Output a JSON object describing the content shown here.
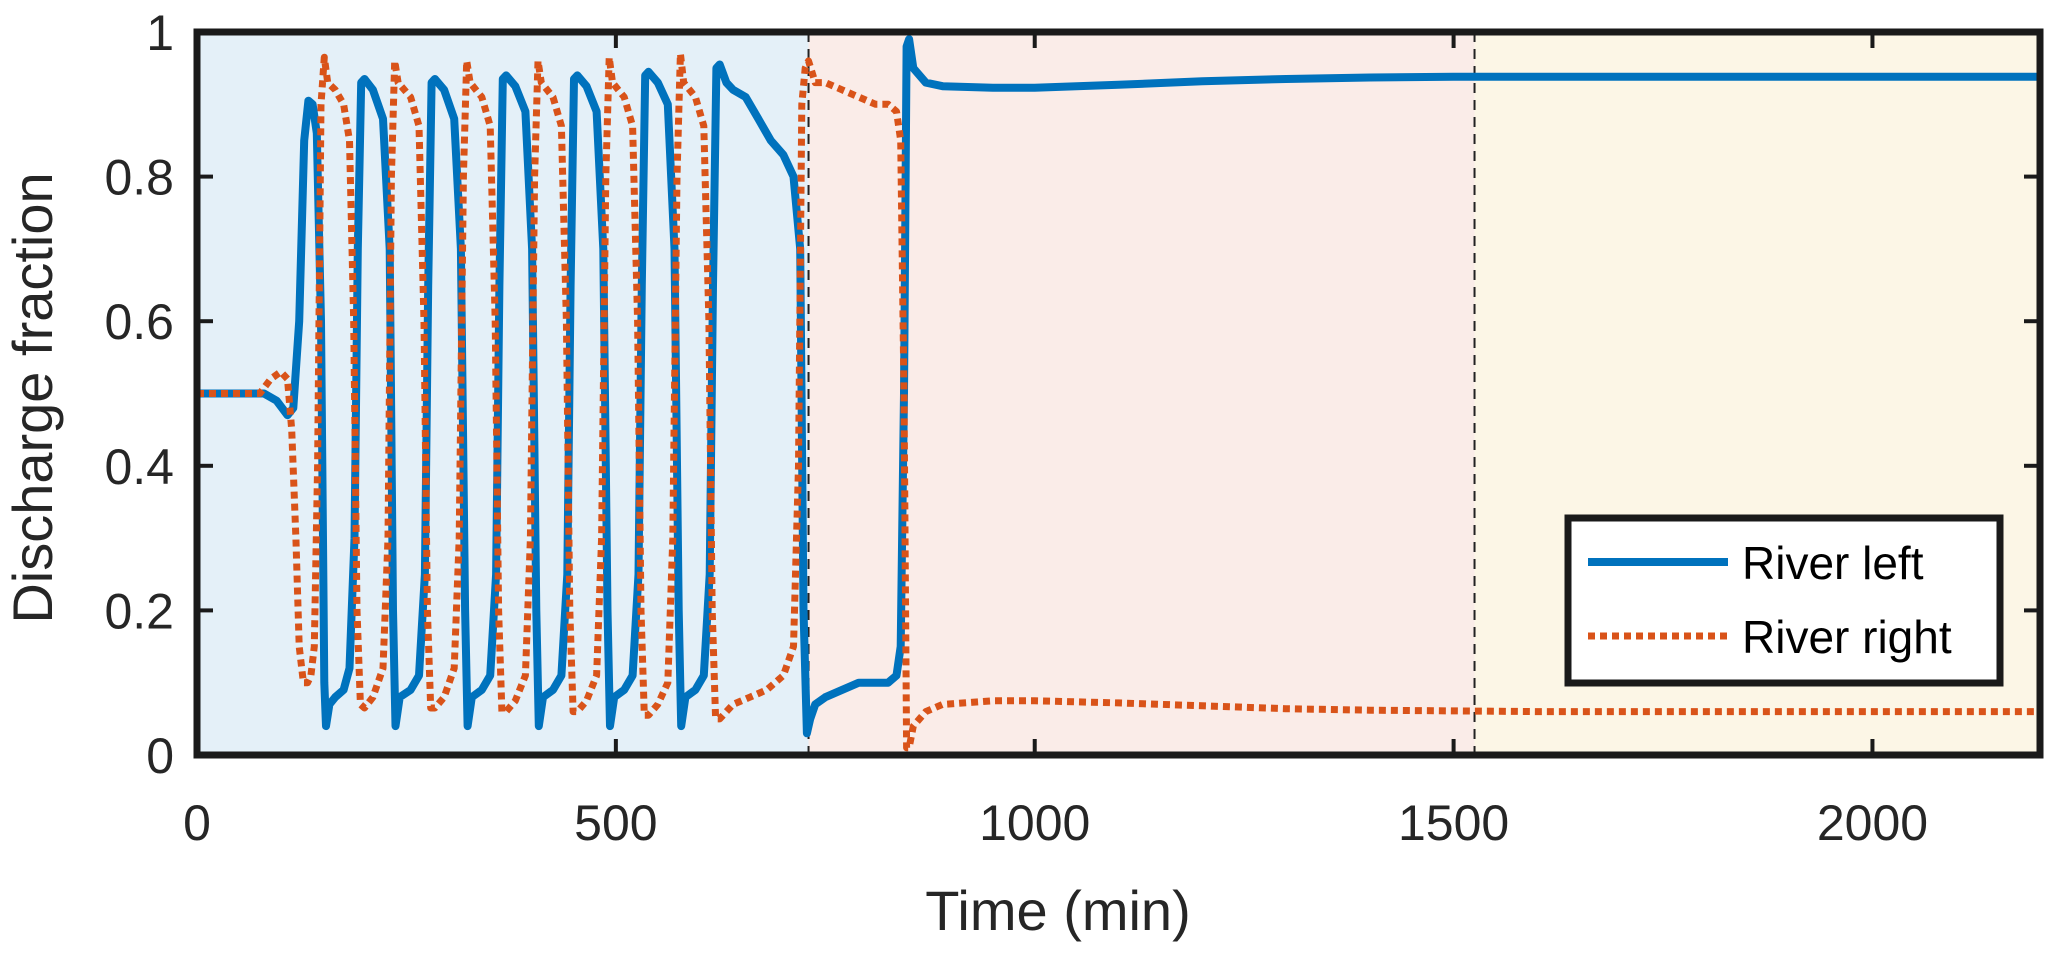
{
  "chart_data": {
    "type": "line",
    "title": "",
    "xlabel": "Time (min)",
    "ylabel": "Discharge fraction",
    "xlim": [
      0,
      2200
    ],
    "ylim": [
      0,
      1
    ],
    "x_ticks": [
      0,
      500,
      1000,
      1500,
      2000
    ],
    "y_ticks": [
      0,
      0.2,
      0.4,
      0.6,
      0.8,
      1
    ],
    "x_tick_labels": [
      "0",
      "500",
      "1000",
      "1500",
      "2000"
    ],
    "y_tick_labels": [
      "0",
      "0.2",
      "0.4",
      "0.6",
      "0.8",
      "1"
    ],
    "grid": false,
    "legend_position": "bottom-right",
    "phase_regions": [
      {
        "x0": 0,
        "x1": 730,
        "color": "#e4f0f8"
      },
      {
        "x0": 730,
        "x1": 1525,
        "color": "#faece8"
      },
      {
        "x0": 1525,
        "x1": 2200,
        "color": "#fcf6e6"
      }
    ],
    "vertical_lines": [
      730,
      1525
    ],
    "series": [
      {
        "name": "River left",
        "color": "#0072bd",
        "style": "solid",
        "points": [
          [
            0,
            0.5
          ],
          [
            80,
            0.5
          ],
          [
            95,
            0.49
          ],
          [
            108,
            0.47
          ],
          [
            115,
            0.48
          ],
          [
            122,
            0.6
          ],
          [
            128,
            0.85
          ],
          [
            133,
            0.905
          ],
          [
            138,
            0.9
          ],
          [
            143,
            0.86
          ],
          [
            148,
            0.6
          ],
          [
            152,
            0.1
          ],
          [
            154,
            0.04
          ],
          [
            158,
            0.07
          ],
          [
            165,
            0.08
          ],
          [
            175,
            0.09
          ],
          [
            182,
            0.12
          ],
          [
            188,
            0.3
          ],
          [
            192,
            0.7
          ],
          [
            196,
            0.93
          ],
          [
            200,
            0.935
          ],
          [
            210,
            0.92
          ],
          [
            222,
            0.88
          ],
          [
            230,
            0.7
          ],
          [
            234,
            0.2
          ],
          [
            237,
            0.04
          ],
          [
            242,
            0.08
          ],
          [
            255,
            0.09
          ],
          [
            265,
            0.11
          ],
          [
            272,
            0.25
          ],
          [
            276,
            0.65
          ],
          [
            280,
            0.93
          ],
          [
            284,
            0.935
          ],
          [
            295,
            0.92
          ],
          [
            307,
            0.88
          ],
          [
            315,
            0.7
          ],
          [
            320,
            0.2
          ],
          [
            323,
            0.04
          ],
          [
            328,
            0.08
          ],
          [
            340,
            0.09
          ],
          [
            350,
            0.11
          ],
          [
            357,
            0.25
          ],
          [
            361,
            0.65
          ],
          [
            365,
            0.935
          ],
          [
            369,
            0.94
          ],
          [
            380,
            0.925
          ],
          [
            392,
            0.89
          ],
          [
            400,
            0.7
          ],
          [
            405,
            0.2
          ],
          [
            408,
            0.04
          ],
          [
            413,
            0.08
          ],
          [
            425,
            0.09
          ],
          [
            435,
            0.11
          ],
          [
            442,
            0.25
          ],
          [
            446,
            0.65
          ],
          [
            450,
            0.935
          ],
          [
            454,
            0.94
          ],
          [
            465,
            0.925
          ],
          [
            477,
            0.89
          ],
          [
            485,
            0.7
          ],
          [
            490,
            0.2
          ],
          [
            493,
            0.04
          ],
          [
            498,
            0.08
          ],
          [
            510,
            0.09
          ],
          [
            520,
            0.11
          ],
          [
            527,
            0.25
          ],
          [
            531,
            0.65
          ],
          [
            535,
            0.94
          ],
          [
            539,
            0.945
          ],
          [
            550,
            0.93
          ],
          [
            562,
            0.9
          ],
          [
            570,
            0.7
          ],
          [
            575,
            0.2
          ],
          [
            578,
            0.04
          ],
          [
            583,
            0.08
          ],
          [
            595,
            0.09
          ],
          [
            605,
            0.11
          ],
          [
            612,
            0.25
          ],
          [
            616,
            0.65
          ],
          [
            620,
            0.95
          ],
          [
            624,
            0.955
          ],
          [
            632,
            0.93
          ],
          [
            640,
            0.92
          ],
          [
            655,
            0.91
          ],
          [
            670,
            0.88
          ],
          [
            685,
            0.85
          ],
          [
            700,
            0.83
          ],
          [
            712,
            0.8
          ],
          [
            720,
            0.7
          ],
          [
            724,
            0.2
          ],
          [
            728,
            0.03
          ],
          [
            732,
            0.05
          ],
          [
            738,
            0.07
          ],
          [
            750,
            0.08
          ],
          [
            770,
            0.09
          ],
          [
            790,
            0.1
          ],
          [
            810,
            0.1
          ],
          [
            825,
            0.1
          ],
          [
            835,
            0.11
          ],
          [
            840,
            0.15
          ],
          [
            844,
            0.5
          ],
          [
            847,
            0.98
          ],
          [
            850,
            0.99
          ],
          [
            855,
            0.95
          ],
          [
            870,
            0.93
          ],
          [
            890,
            0.925
          ],
          [
            950,
            0.923
          ],
          [
            1000,
            0.923
          ],
          [
            1100,
            0.927
          ],
          [
            1200,
            0.932
          ],
          [
            1300,
            0.935
          ],
          [
            1400,
            0.937
          ],
          [
            1500,
            0.938
          ],
          [
            1600,
            0.938
          ],
          [
            1700,
            0.938
          ],
          [
            1800,
            0.938
          ],
          [
            1900,
            0.938
          ],
          [
            2000,
            0.938
          ],
          [
            2100,
            0.938
          ],
          [
            2200,
            0.938
          ]
        ]
      },
      {
        "name": "River right",
        "color": "#d95319",
        "style": "dotted",
        "points": [
          [
            0,
            0.5
          ],
          [
            75,
            0.5
          ],
          [
            88,
            0.52
          ],
          [
            100,
            0.53
          ],
          [
            108,
            0.52
          ],
          [
            113,
            0.45
          ],
          [
            118,
            0.3
          ],
          [
            122,
            0.15
          ],
          [
            127,
            0.1
          ],
          [
            132,
            0.1
          ],
          [
            136,
            0.11
          ],
          [
            140,
            0.15
          ],
          [
            144,
            0.4
          ],
          [
            148,
            0.9
          ],
          [
            152,
            0.965
          ],
          [
            156,
            0.93
          ],
          [
            165,
            0.92
          ],
          [
            175,
            0.9
          ],
          [
            182,
            0.85
          ],
          [
            187,
            0.6
          ],
          [
            191,
            0.2
          ],
          [
            195,
            0.07
          ],
          [
            200,
            0.065
          ],
          [
            210,
            0.08
          ],
          [
            222,
            0.12
          ],
          [
            228,
            0.3
          ],
          [
            232,
            0.8
          ],
          [
            236,
            0.96
          ],
          [
            240,
            0.93
          ],
          [
            255,
            0.91
          ],
          [
            265,
            0.87
          ],
          [
            271,
            0.6
          ],
          [
            275,
            0.2
          ],
          [
            279,
            0.065
          ],
          [
            284,
            0.065
          ],
          [
            295,
            0.08
          ],
          [
            307,
            0.12
          ],
          [
            313,
            0.3
          ],
          [
            318,
            0.8
          ],
          [
            322,
            0.96
          ],
          [
            326,
            0.93
          ],
          [
            340,
            0.91
          ],
          [
            350,
            0.87
          ],
          [
            356,
            0.6
          ],
          [
            360,
            0.2
          ],
          [
            364,
            0.06
          ],
          [
            369,
            0.06
          ],
          [
            380,
            0.075
          ],
          [
            392,
            0.11
          ],
          [
            398,
            0.3
          ],
          [
            403,
            0.8
          ],
          [
            407,
            0.96
          ],
          [
            411,
            0.93
          ],
          [
            425,
            0.91
          ],
          [
            435,
            0.87
          ],
          [
            441,
            0.6
          ],
          [
            445,
            0.2
          ],
          [
            449,
            0.06
          ],
          [
            454,
            0.06
          ],
          [
            465,
            0.075
          ],
          [
            477,
            0.11
          ],
          [
            483,
            0.3
          ],
          [
            488,
            0.8
          ],
          [
            492,
            0.965
          ],
          [
            496,
            0.93
          ],
          [
            510,
            0.91
          ],
          [
            520,
            0.87
          ],
          [
            526,
            0.6
          ],
          [
            530,
            0.2
          ],
          [
            534,
            0.055
          ],
          [
            539,
            0.055
          ],
          [
            550,
            0.07
          ],
          [
            562,
            0.1
          ],
          [
            568,
            0.3
          ],
          [
            573,
            0.8
          ],
          [
            577,
            0.97
          ],
          [
            581,
            0.93
          ],
          [
            595,
            0.91
          ],
          [
            605,
            0.87
          ],
          [
            611,
            0.6
          ],
          [
            615,
            0.2
          ],
          [
            619,
            0.05
          ],
          [
            624,
            0.05
          ],
          [
            640,
            0.07
          ],
          [
            660,
            0.08
          ],
          [
            680,
            0.09
          ],
          [
            700,
            0.11
          ],
          [
            712,
            0.15
          ],
          [
            718,
            0.4
          ],
          [
            722,
            0.9
          ],
          [
            726,
            0.95
          ],
          [
            730,
            0.96
          ],
          [
            738,
            0.93
          ],
          [
            750,
            0.93
          ],
          [
            770,
            0.92
          ],
          [
            790,
            0.91
          ],
          [
            810,
            0.9
          ],
          [
            825,
            0.9
          ],
          [
            835,
            0.89
          ],
          [
            840,
            0.85
          ],
          [
            844,
            0.5
          ],
          [
            847,
            0.01
          ],
          [
            850,
            0.01
          ],
          [
            855,
            0.04
          ],
          [
            870,
            0.06
          ],
          [
            890,
            0.07
          ],
          [
            950,
            0.075
          ],
          [
            1000,
            0.075
          ],
          [
            1100,
            0.072
          ],
          [
            1200,
            0.068
          ],
          [
            1300,
            0.064
          ],
          [
            1400,
            0.062
          ],
          [
            1500,
            0.061
          ],
          [
            1600,
            0.06
          ],
          [
            1700,
            0.06
          ],
          [
            1800,
            0.06
          ],
          [
            1900,
            0.06
          ],
          [
            2000,
            0.06
          ],
          [
            2100,
            0.06
          ],
          [
            2200,
            0.06
          ]
        ]
      }
    ]
  }
}
